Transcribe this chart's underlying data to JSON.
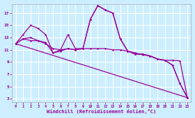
{
  "xlabel": "Windchill (Refroidissement éolien,°C)",
  "bg_color": "#cceeff",
  "line_color": "#990099",
  "grid_color": "#ffffff",
  "xlim": [
    -0.5,
    23.5
  ],
  "ylim": [
    2.5,
    18.5
  ],
  "yticks": [
    3,
    5,
    7,
    9,
    11,
    13,
    15,
    17
  ],
  "xticks": [
    0,
    1,
    2,
    3,
    4,
    5,
    6,
    7,
    8,
    9,
    10,
    11,
    12,
    13,
    14,
    15,
    16,
    17,
    18,
    19,
    20,
    21,
    22,
    23
  ],
  "line1_x": [
    0,
    1,
    2,
    3,
    4,
    5,
    6,
    7,
    8,
    9,
    10,
    11,
    12,
    13,
    14,
    15,
    16,
    17,
    18,
    19,
    20,
    21,
    22,
    23
  ],
  "line1_y": [
    12.0,
    12.8,
    13.0,
    12.5,
    12.0,
    11.2,
    11.0,
    11.2,
    11.0,
    11.2,
    11.2,
    11.2,
    11.2,
    11.0,
    11.0,
    10.8,
    10.5,
    10.2,
    10.0,
    9.5,
    9.3,
    9.3,
    9.2,
    3.2
  ],
  "line2_x": [
    0,
    1,
    2,
    3,
    4,
    5,
    6,
    7,
    8,
    9,
    10,
    11,
    12,
    13,
    14,
    15,
    16,
    17,
    18,
    19,
    20,
    21,
    22,
    23
  ],
  "line2_y": [
    12.0,
    13.5,
    15.0,
    14.5,
    13.5,
    10.5,
    11.0,
    13.5,
    11.2,
    11.2,
    16.0,
    18.2,
    17.5,
    17.0,
    12.8,
    10.8,
    10.3,
    10.3,
    10.0,
    9.5,
    9.3,
    8.5,
    5.5,
    3.2
  ],
  "line3_x": [
    0,
    1,
    2,
    3,
    4,
    5,
    6,
    7,
    8,
    9,
    10,
    11,
    12,
    13,
    14,
    15,
    16,
    17,
    18,
    19,
    20,
    21,
    22,
    23
  ],
  "line3_y": [
    12.0,
    12.8,
    12.5,
    12.5,
    12.2,
    10.5,
    10.8,
    11.2,
    11.0,
    11.2,
    16.0,
    18.2,
    17.5,
    17.0,
    12.8,
    10.8,
    10.3,
    10.3,
    10.0,
    9.5,
    9.3,
    8.5,
    5.5,
    3.2
  ],
  "line4_x": [
    0,
    23
  ],
  "line4_y": [
    12.0,
    3.2
  ]
}
